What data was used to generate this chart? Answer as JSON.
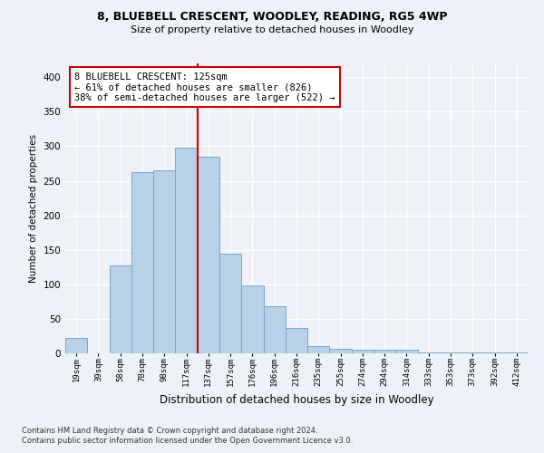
{
  "title1": "8, BLUEBELL CRESCENT, WOODLEY, READING, RG5 4WP",
  "title2": "Size of property relative to detached houses in Woodley",
  "xlabel": "Distribution of detached houses by size in Woodley",
  "ylabel": "Number of detached properties",
  "bar_color": "#b8d0e8",
  "bar_edge_color": "#7aa8cc",
  "bins": [
    "19sqm",
    "39sqm",
    "58sqm",
    "78sqm",
    "98sqm",
    "117sqm",
    "137sqm",
    "157sqm",
    "176sqm",
    "196sqm",
    "216sqm",
    "235sqm",
    "255sqm",
    "274sqm",
    "294sqm",
    "314sqm",
    "333sqm",
    "353sqm",
    "373sqm",
    "392sqm",
    "412sqm"
  ],
  "bar_heights": [
    22,
    0,
    127,
    263,
    265,
    298,
    285,
    145,
    98,
    68,
    37,
    10,
    6,
    5,
    5,
    5,
    1,
    1,
    1,
    1,
    1
  ],
  "ylim": [
    0,
    420
  ],
  "yticks": [
    0,
    50,
    100,
    150,
    200,
    250,
    300,
    350,
    400
  ],
  "vline_color": "#cc0000",
  "vline_bin_index": 5,
  "annotation_title": "8 BLUEBELL CRESCENT: 125sqm",
  "annotation_line1": "← 61% of detached houses are smaller (826)",
  "annotation_line2": "38% of semi-detached houses are larger (522) →",
  "annotation_box_color": "#ffffff",
  "annotation_box_edge": "#cc0000",
  "footer1": "Contains HM Land Registry data © Crown copyright and database right 2024.",
  "footer2": "Contains public sector information licensed under the Open Government Licence v3.0.",
  "bg_color": "#eef2f8",
  "grid_color": "#ffffff"
}
